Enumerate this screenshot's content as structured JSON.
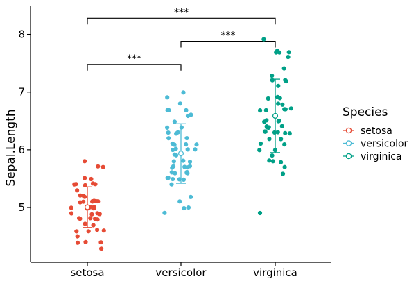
{
  "chart_data": {
    "type": "scatter",
    "subtype": "jitter-strip with mean and sd error bars, significance brackets",
    "categories": [
      "setosa",
      "versicolor",
      "virginica"
    ],
    "xlabel": "",
    "ylabel": "Sepal.Length",
    "ylim": [
      4.05,
      8.5
    ],
    "yticks": [
      5,
      6,
      7,
      8
    ],
    "grid": false,
    "legend": {
      "title": "Species",
      "placement": "right",
      "entries": [
        "setosa",
        "versicolor",
        "virginica"
      ]
    },
    "colors": {
      "setosa": "#E64B35",
      "versicolor": "#4DBBD5",
      "virginica": "#00A087"
    },
    "series": [
      {
        "name": "setosa",
        "mean": 5.006,
        "sd": 0.352,
        "values": [
          5.1,
          4.9,
          4.7,
          4.6,
          5.0,
          5.4,
          4.6,
          5.0,
          4.4,
          4.9,
          5.4,
          4.8,
          4.8,
          4.3,
          5.8,
          5.7,
          5.4,
          5.1,
          5.7,
          5.1,
          5.4,
          5.1,
          4.6,
          5.1,
          4.8,
          5.0,
          5.0,
          5.2,
          5.2,
          4.7,
          4.8,
          5.4,
          5.2,
          5.5,
          4.9,
          5.0,
          5.5,
          4.9,
          4.4,
          5.1,
          5.0,
          4.5,
          4.4,
          5.0,
          5.1,
          4.8,
          5.1,
          4.6,
          5.3,
          5.0
        ]
      },
      {
        "name": "versicolor",
        "mean": 5.936,
        "sd": 0.516,
        "values": [
          7.0,
          6.4,
          6.9,
          5.5,
          6.5,
          5.7,
          6.3,
          4.9,
          6.6,
          5.2,
          5.0,
          5.9,
          6.0,
          6.1,
          5.6,
          6.7,
          5.6,
          5.8,
          6.2,
          5.6,
          5.9,
          6.1,
          6.3,
          6.1,
          6.4,
          6.6,
          6.8,
          6.7,
          6.0,
          5.7,
          5.5,
          5.5,
          5.8,
          6.0,
          5.4,
          6.0,
          6.7,
          6.3,
          5.6,
          5.5,
          5.5,
          6.1,
          5.8,
          5.0,
          5.6,
          5.7,
          5.7,
          6.2,
          5.1,
          5.7
        ]
      },
      {
        "name": "virginica",
        "mean": 6.588,
        "sd": 0.636,
        "values": [
          6.3,
          5.8,
          7.1,
          6.3,
          6.5,
          7.6,
          4.9,
          7.3,
          6.7,
          7.2,
          6.5,
          6.4,
          6.8,
          5.7,
          5.8,
          6.4,
          6.5,
          7.7,
          7.7,
          6.0,
          6.9,
          5.6,
          7.7,
          6.3,
          6.7,
          7.2,
          6.2,
          6.1,
          6.4,
          7.2,
          7.4,
          7.9,
          6.4,
          6.3,
          6.1,
          7.7,
          6.3,
          6.4,
          6.0,
          6.9,
          6.7,
          6.9,
          5.8,
          6.8,
          6.7,
          6.7,
          6.3,
          6.5,
          6.2,
          5.9
        ]
      }
    ],
    "comparisons": [
      {
        "groups": [
          "setosa",
          "versicolor"
        ],
        "y": 7.48,
        "label": "***"
      },
      {
        "groups": [
          "versicolor",
          "virginica"
        ],
        "y": 7.88,
        "label": "***"
      },
      {
        "groups": [
          "setosa",
          "virginica"
        ],
        "y": 8.28,
        "label": "***"
      }
    ]
  }
}
